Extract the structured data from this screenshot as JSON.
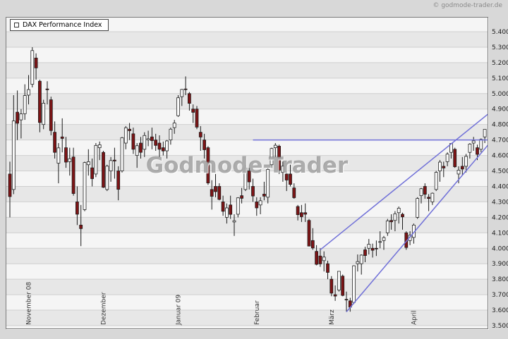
{
  "page": {
    "copyright": "© godmode-trader.de",
    "background": "#d8d8d8"
  },
  "legend": {
    "label": "DAX Performance Index"
  },
  "watermark": "Godmode-Trader",
  "chart_data": {
    "type": "candlestick",
    "title": "DAX Performance Index",
    "ylim": [
      3500,
      5400
    ],
    "grid": true,
    "y_ticks": [
      {
        "label": "5.400",
        "value": 5400
      },
      {
        "label": "5.300",
        "value": 5300
      },
      {
        "label": "5.200",
        "value": 5200
      },
      {
        "label": "5.100",
        "value": 5100
      },
      {
        "label": "5.000",
        "value": 5000
      },
      {
        "label": "4.900",
        "value": 4900
      },
      {
        "label": "4.800",
        "value": 4800
      },
      {
        "label": "4.700",
        "value": 4700
      },
      {
        "label": "4.600",
        "value": 4600
      },
      {
        "label": "4.500",
        "value": 4500
      },
      {
        "label": "4.400",
        "value": 4400
      },
      {
        "label": "4.300",
        "value": 4300
      },
      {
        "label": "4.200",
        "value": 4200
      },
      {
        "label": "4.100",
        "value": 4100
      },
      {
        "label": "4.000",
        "value": 4000
      },
      {
        "label": "3.900",
        "value": 3900
      },
      {
        "label": "3.800",
        "value": 3800
      },
      {
        "label": "3.700",
        "value": 3700
      },
      {
        "label": "3.600",
        "value": 3600
      },
      {
        "label": "3.500",
        "value": 3500
      }
    ],
    "x_month_labels": [
      {
        "label": "November 08",
        "index": 5
      },
      {
        "label": "Dezember",
        "index": 25
      },
      {
        "label": "Januar 09",
        "index": 45
      },
      {
        "label": "Februar",
        "index": 66
      },
      {
        "label": "März",
        "index": 86
      },
      {
        "label": "April",
        "index": 108
      }
    ],
    "candles": [
      [
        4480,
        4560,
        4200,
        4334
      ],
      [
        4380,
        4990,
        4350,
        4823
      ],
      [
        4880,
        5020,
        4700,
        4808
      ],
      [
        4830,
        4900,
        4710,
        4869
      ],
      [
        4870,
        5060,
        4830,
        4987
      ],
      [
        4990,
        5120,
        4930,
        5026
      ],
      [
        5060,
        5300,
        5040,
        5278
      ],
      [
        5230,
        5260,
        5090,
        5166
      ],
      [
        5080,
        5090,
        4750,
        4813
      ],
      [
        4800,
        4960,
        4770,
        4938
      ],
      [
        5030,
        5080,
        4930,
        5025
      ],
      [
        4960,
        4980,
        4730,
        4761
      ],
      [
        4750,
        4820,
        4580,
        4620
      ],
      [
        4550,
        4680,
        4420,
        4649
      ],
      [
        4720,
        4840,
        4620,
        4710
      ],
      [
        4650,
        4720,
        4520,
        4557
      ],
      [
        4560,
        4650,
        4470,
        4579
      ],
      [
        4590,
        4650,
        4340,
        4354
      ],
      [
        4300,
        4400,
        4150,
        4220
      ],
      [
        4150,
        4280,
        4014,
        4127
      ],
      [
        4250,
        4560,
        4240,
        4554
      ],
      [
        4540,
        4640,
        4470,
        4560
      ],
      [
        4520,
        4580,
        4400,
        4450
      ],
      [
        4480,
        4680,
        4460,
        4665
      ],
      [
        4650,
        4690,
        4570,
        4669
      ],
      [
        4620,
        4630,
        4390,
        4394
      ],
      [
        4380,
        4540,
        4370,
        4531
      ],
      [
        4500,
        4590,
        4430,
        4567
      ],
      [
        4570,
        4650,
        4450,
        4564
      ],
      [
        4500,
        4530,
        4310,
        4381
      ],
      [
        4500,
        4720,
        4490,
        4715
      ],
      [
        4680,
        4790,
        4640,
        4779
      ],
      [
        4770,
        4810,
        4700,
        4760
      ],
      [
        4740,
        4780,
        4610,
        4640
      ],
      [
        4600,
        4680,
        4520,
        4663
      ],
      [
        4680,
        4720,
        4580,
        4620
      ],
      [
        4640,
        4750,
        4590,
        4729
      ],
      [
        4700,
        4760,
        4660,
        4708
      ],
      [
        4720,
        4780,
        4640,
        4696
      ],
      [
        4700,
        4740,
        4630,
        4665
      ],
      [
        4680,
        4730,
        4590,
        4640
      ],
      [
        4650,
        4690,
        4600,
        4629
      ],
      [
        4630,
        4700,
        4580,
        4694
      ],
      [
        4700,
        4780,
        4670,
        4770
      ],
      [
        4780,
        4830,
        4740,
        4810
      ],
      [
        4857,
        4990,
        4850,
        4973
      ],
      [
        4980,
        5030,
        4920,
        5027
      ],
      [
        5030,
        5111,
        4990,
        5026
      ],
      [
        5000,
        5010,
        4890,
        4937
      ],
      [
        4900,
        4930,
        4810,
        4879
      ],
      [
        4900,
        4920,
        4770,
        4783
      ],
      [
        4750,
        4790,
        4630,
        4719
      ],
      [
        4700,
        4740,
        4580,
        4637
      ],
      [
        4650,
        4660,
        4410,
        4422
      ],
      [
        4380,
        4440,
        4250,
        4336
      ],
      [
        4400,
        4480,
        4330,
        4366
      ],
      [
        4400,
        4420,
        4310,
        4316
      ],
      [
        4300,
        4340,
        4210,
        4239
      ],
      [
        4200,
        4290,
        4160,
        4261
      ],
      [
        4280,
        4340,
        4190,
        4219
      ],
      [
        4170,
        4220,
        4080,
        4178
      ],
      [
        4220,
        4330,
        4200,
        4326
      ],
      [
        4340,
        4390,
        4290,
        4323
      ],
      [
        4380,
        4540,
        4370,
        4519
      ],
      [
        4500,
        4520,
        4380,
        4429
      ],
      [
        4400,
        4450,
        4300,
        4338
      ],
      [
        4300,
        4330,
        4210,
        4261
      ],
      [
        4280,
        4330,
        4220,
        4307
      ],
      [
        4350,
        4430,
        4310,
        4337
      ],
      [
        4330,
        4520,
        4290,
        4510
      ],
      [
        4540,
        4650,
        4520,
        4645
      ],
      [
        4650,
        4680,
        4590,
        4666
      ],
      [
        4660,
        4670,
        4480,
        4505
      ],
      [
        4490,
        4560,
        4430,
        4531
      ],
      [
        4480,
        4500,
        4370,
        4441
      ],
      [
        4480,
        4540,
        4400,
        4413
      ],
      [
        4390,
        4420,
        4320,
        4327
      ],
      [
        4270,
        4280,
        4180,
        4217
      ],
      [
        4230,
        4280,
        4170,
        4204
      ],
      [
        4230,
        4290,
        4170,
        4220
      ],
      [
        4180,
        4190,
        4030,
        4014
      ],
      [
        4050,
        4130,
        3990,
        4002
      ],
      [
        3980,
        4020,
        3890,
        3896
      ],
      [
        3950,
        4000,
        3880,
        3899
      ],
      [
        3920,
        3980,
        3850,
        3943
      ],
      [
        3900,
        3920,
        3800,
        3844
      ],
      [
        3800,
        3820,
        3690,
        3710
      ],
      [
        3700,
        3760,
        3660,
        3691
      ],
      [
        3730,
        3850,
        3720,
        3851
      ],
      [
        3820,
        3830,
        3690,
        3695
      ],
      [
        3670,
        3720,
        3589,
        3666
      ],
      [
        3660,
        3680,
        3590,
        3619
      ],
      [
        3650,
        3890,
        3640,
        3887
      ],
      [
        3900,
        3960,
        3850,
        3914
      ],
      [
        3900,
        3960,
        3830,
        3956
      ],
      [
        3990,
        4010,
        3910,
        3953
      ],
      [
        4000,
        4060,
        3960,
        4026
      ],
      [
        4000,
        4030,
        3940,
        3987
      ],
      [
        4000,
        4050,
        3950,
        3996
      ],
      [
        4040,
        4110,
        4000,
        4043
      ],
      [
        4050,
        4080,
        3990,
        4069
      ],
      [
        4100,
        4190,
        4080,
        4177
      ],
      [
        4180,
        4220,
        4120,
        4171
      ],
      [
        4180,
        4240,
        4110,
        4223
      ],
      [
        4230,
        4270,
        4160,
        4259
      ],
      [
        4220,
        4230,
        4120,
        4203
      ],
      [
        4100,
        4110,
        3990,
        4005
      ],
      [
        4050,
        4110,
        4020,
        4085
      ],
      [
        4070,
        4160,
        4030,
        4150
      ],
      [
        4200,
        4330,
        4190,
        4322
      ],
      [
        4340,
        4390,
        4290,
        4385
      ],
      [
        4400,
        4420,
        4320,
        4349
      ],
      [
        4330,
        4350,
        4240,
        4322
      ],
      [
        4300,
        4360,
        4280,
        4356
      ],
      [
        4380,
        4500,
        4370,
        4491
      ],
      [
        4500,
        4570,
        4430,
        4557
      ],
      [
        4530,
        4560,
        4460,
        4519
      ],
      [
        4560,
        4620,
        4530,
        4609
      ],
      [
        4620,
        4680,
        4580,
        4677
      ],
      [
        4640,
        4650,
        4520,
        4527
      ],
      [
        4480,
        4530,
        4420,
        4505
      ],
      [
        4530,
        4590,
        4470,
        4512
      ],
      [
        4530,
        4610,
        4490,
        4594
      ],
      [
        4620,
        4680,
        4580,
        4674
      ],
      [
        4680,
        4720,
        4630,
        4694
      ],
      [
        4650,
        4670,
        4570,
        4607
      ],
      [
        4640,
        4710,
        4620,
        4704
      ],
      [
        4720,
        4770,
        4680,
        4769
      ]
    ],
    "trendlines": [
      {
        "name": "horizontal-resistance",
        "x1": 65,
        "y1": 4700,
        "x2": 129,
        "y2": 4700
      },
      {
        "name": "ascending-upper",
        "x1": 83,
        "y1": 3990,
        "x2": 129,
        "y2": 4890
      },
      {
        "name": "ascending-lower",
        "x1": 90,
        "y1": 3589,
        "x2": 129,
        "y2": 4700
      }
    ],
    "colors": {
      "band_dark": "#e7e7e7",
      "band_light": "#f5f5f5",
      "grid": "#cfcfcf",
      "stroke": "#1a1a1a",
      "up_fill": "#fafafa",
      "down_fill": "#7d1416",
      "trendline": "#7070d8",
      "axis_text": "#1c1c1c",
      "month_text": "#333333"
    }
  }
}
